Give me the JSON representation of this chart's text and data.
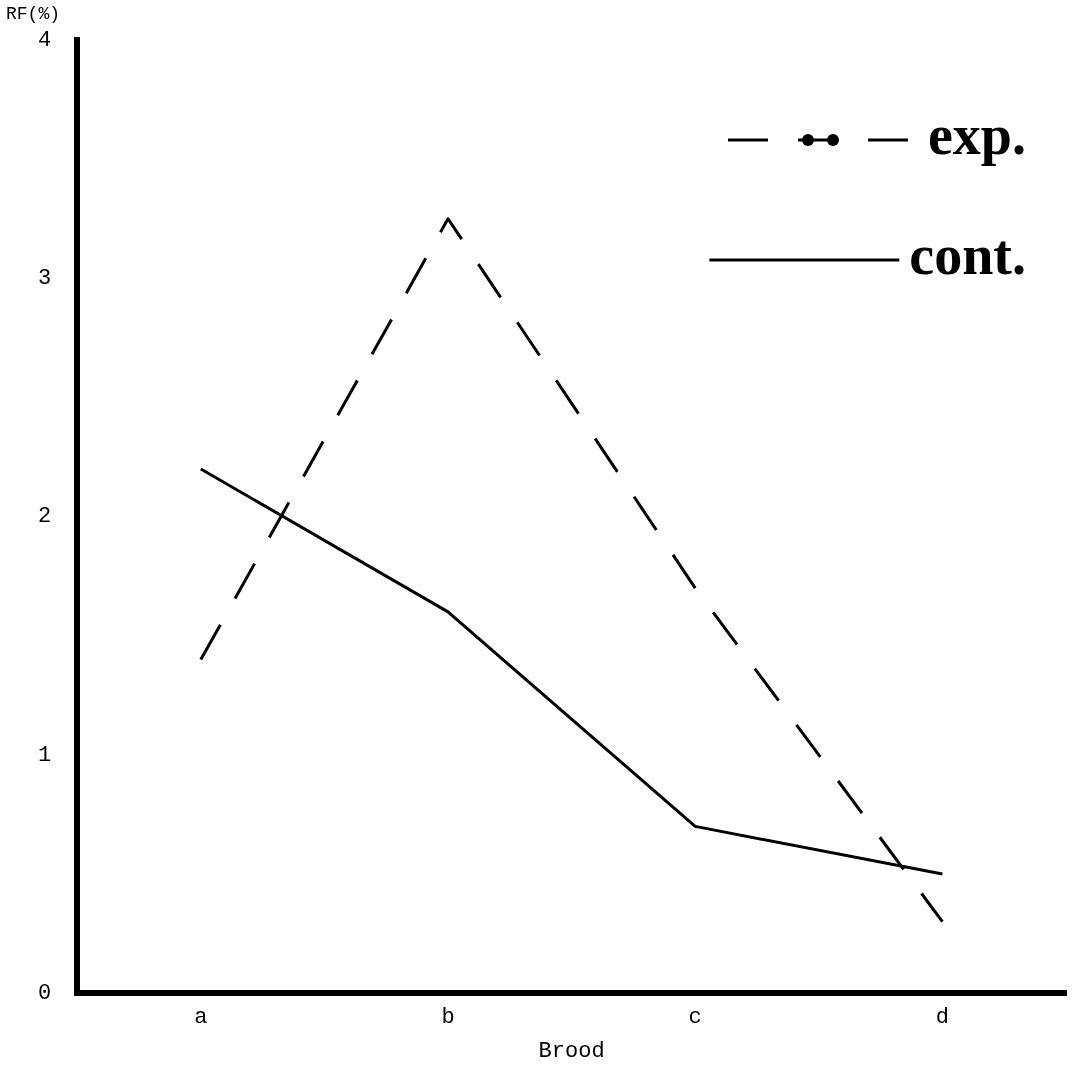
{
  "chart_data": {
    "type": "line",
    "xlabel": "Brood",
    "ylabel": "RF(%)",
    "categories": [
      "a",
      "b",
      "c",
      "d"
    ],
    "series": [
      {
        "name": "exp.",
        "color": "#000000",
        "values": [
          1.4,
          3.25,
          1.7,
          0.3
        ],
        "line_style": "dashed"
      },
      {
        "name": "cont.",
        "color": "#000000",
        "values": [
          2.2,
          1.6,
          0.7,
          0.5
        ],
        "line_style": "solid"
      }
    ],
    "ylim": [
      0,
      4
    ],
    "yticks": [
      0,
      1,
      2,
      3,
      4
    ],
    "grid": false,
    "legend": "top right",
    "marker": "none"
  }
}
